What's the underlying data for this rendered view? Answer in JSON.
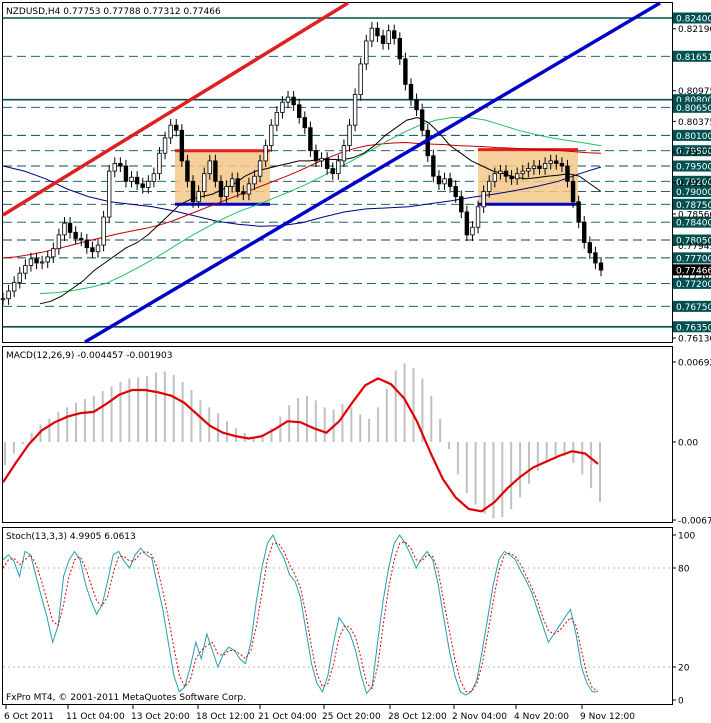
{
  "chart_data": [
    {
      "type": "candlestick",
      "title": "NZDUSD,H4  0.77753 0.77788 0.77312 0.77466",
      "ylim": [
        0.7613,
        0.824
      ],
      "current_price": "0.77466",
      "y_ticks": [
        "0.82190",
        "0.80975",
        "0.80375",
        "0.79775",
        "0.79175",
        "0.78560",
        "0.77945",
        "0.77365",
        "0.76130"
      ],
      "level_labels": [
        "0.82400",
        "0.81651",
        "0.80800",
        "0.80650",
        "0.80100",
        "0.79800",
        "0.79500",
        "0.79200",
        "0.79000",
        "0.78750",
        "0.78400",
        "0.78050",
        "0.77700",
        "0.77200",
        "0.76750",
        "0.76350"
      ],
      "levels": [
        0.824,
        0.8165,
        0.808,
        0.8065,
        0.801,
        0.798,
        0.795,
        0.792,
        0.79,
        0.7875,
        0.784,
        0.7805,
        0.777,
        0.772,
        0.7675,
        0.7635
      ],
      "levels_dark": [
        0.824,
        0.808,
        0.7635
      ],
      "close_path": [
        0.769,
        0.7705,
        0.7722,
        0.774,
        0.7755,
        0.7768,
        0.776,
        0.7762,
        0.7772,
        0.7788,
        0.7815,
        0.7838,
        0.782,
        0.7808,
        0.7805,
        0.779,
        0.7782,
        0.7795,
        0.785,
        0.794,
        0.7955,
        0.795,
        0.792,
        0.7928,
        0.7915,
        0.7908,
        0.792,
        0.7935,
        0.7975,
        0.8005,
        0.803,
        0.802,
        0.796,
        0.792,
        0.788,
        0.79,
        0.7935,
        0.796,
        0.792,
        0.789,
        0.791,
        0.7925,
        0.79,
        0.7895,
        0.7915,
        0.793,
        0.796,
        0.799,
        0.803,
        0.8055,
        0.8075,
        0.8085,
        0.807,
        0.8045,
        0.8025,
        0.798,
        0.796,
        0.7965,
        0.7945,
        0.7935,
        0.796,
        0.799,
        0.803,
        0.809,
        0.815,
        0.8195,
        0.822,
        0.8205,
        0.819,
        0.8215,
        0.82,
        0.816,
        0.811,
        0.808,
        0.806,
        0.802,
        0.797,
        0.793,
        0.7915,
        0.7925,
        0.791,
        0.789,
        0.786,
        0.7815,
        0.783,
        0.787,
        0.79,
        0.792,
        0.7935,
        0.794,
        0.793,
        0.7925,
        0.7935,
        0.794,
        0.7945,
        0.795,
        0.7945,
        0.7955,
        0.796,
        0.7955,
        0.795,
        0.792,
        0.788,
        0.784,
        0.78,
        0.778,
        0.776,
        0.7746
      ],
      "sma_black": [
        0.768,
        0.7685,
        0.7695,
        0.771,
        0.7725,
        0.7745,
        0.776,
        0.7775,
        0.779,
        0.78,
        0.7815,
        0.7835,
        0.7855,
        0.7875,
        0.7885,
        0.789,
        0.7895,
        0.7905,
        0.7915,
        0.793,
        0.794,
        0.7945,
        0.795,
        0.7955,
        0.796,
        0.796,
        0.7963,
        0.7963,
        0.7962,
        0.7966,
        0.7975,
        0.799,
        0.801,
        0.8025,
        0.804,
        0.8045,
        0.8035,
        0.8015,
        0.799,
        0.7975,
        0.796,
        0.795,
        0.794,
        0.7935,
        0.7928,
        0.7925,
        0.7927,
        0.793,
        0.7932,
        0.7935,
        0.793,
        0.7915,
        0.79
      ],
      "sma_green": [
        0.77,
        0.7702,
        0.7706,
        0.7712,
        0.772,
        0.7735,
        0.7752,
        0.777,
        0.779,
        0.781,
        0.7828,
        0.7845,
        0.786,
        0.7872,
        0.7885,
        0.7898,
        0.7912,
        0.7928,
        0.7945,
        0.7962,
        0.798,
        0.7998,
        0.8015,
        0.803,
        0.804,
        0.8045,
        0.8045,
        0.804,
        0.803,
        0.802,
        0.8012,
        0.8005,
        0.8,
        0.7995,
        0.799
      ],
      "sma_red": [
        0.777,
        0.7772,
        0.7776,
        0.7781,
        0.7787,
        0.7793,
        0.78,
        0.7806,
        0.7812,
        0.7818,
        0.7823,
        0.7828,
        0.7834,
        0.7842,
        0.7852,
        0.7862,
        0.7872,
        0.7882,
        0.7892,
        0.7902,
        0.7912,
        0.7922,
        0.7932,
        0.7943,
        0.7955,
        0.7966,
        0.7976,
        0.7984,
        0.799,
        0.7993,
        0.7995,
        0.7996,
        0.7994,
        0.7993,
        0.7992,
        0.799,
        0.7989,
        0.7988,
        0.7986,
        0.7985,
        0.7984,
        0.7983,
        0.7982,
        0.798,
        0.7978,
        0.7976,
        0.7975
      ],
      "sma_navy": [
        0.795,
        0.794,
        0.7925,
        0.7905,
        0.789,
        0.788,
        0.7875,
        0.787,
        0.7862,
        0.7852,
        0.7842,
        0.7836,
        0.7832,
        0.7833,
        0.7839,
        0.785,
        0.786,
        0.7866,
        0.7868,
        0.787,
        0.7876,
        0.7882,
        0.7889,
        0.7895,
        0.7902,
        0.791,
        0.792,
        0.7935,
        0.7948
      ]
    },
    {
      "type": "macd",
      "title": "MACD(12,26,9) -0.004457 -0.001903",
      "ylim": [
        -0.00675,
        0.00692
      ],
      "y_ticks": [
        "0.00692",
        "0.00",
        "-0.00675"
      ],
      "histogram": [
        -0.002,
        -0.001,
        -0.0002,
        0.0008,
        0.0015,
        0.002,
        0.0026,
        0.003,
        0.0034,
        0.0037,
        0.004,
        0.0044,
        0.0048,
        0.0052,
        0.0055,
        0.0056,
        0.0057,
        0.006,
        0.0061,
        0.0058,
        0.0052,
        0.0045,
        0.0036,
        0.003,
        0.0025,
        0.0018,
        0.0012,
        0.0008,
        0.0004,
        0.0006,
        0.0012,
        0.0022,
        0.0032,
        0.0038,
        0.004,
        0.0036,
        0.003,
        0.0028,
        0.0033,
        0.003,
        0.0024,
        0.002,
        0.003,
        0.0046,
        0.0062,
        0.0068,
        0.0064,
        0.0055,
        0.004,
        0.002,
        -0.0006,
        -0.0028,
        -0.0044,
        -0.0054,
        -0.0062,
        -0.0066,
        -0.0065,
        -0.0058,
        -0.0048,
        -0.0036,
        -0.0025,
        -0.0016,
        -0.0012,
        -0.0012,
        -0.0018,
        -0.0028,
        -0.004,
        -0.0052
      ],
      "signal": [
        -0.0035,
        -0.0018,
        -0.0002,
        0.001,
        0.0017,
        0.0022,
        0.0025,
        0.0026,
        0.0033,
        0.0041,
        0.0045,
        0.0045,
        0.0043,
        0.004,
        0.0034,
        0.0024,
        0.0014,
        0.0008,
        0.0005,
        0.0003,
        0.0005,
        0.0011,
        0.0018,
        0.0017,
        0.0012,
        0.0008,
        0.0018,
        0.0034,
        0.0049,
        0.0055,
        0.005,
        0.0038,
        0.0018,
        -0.0008,
        -0.0032,
        -0.0048,
        -0.0058,
        -0.006,
        -0.0052,
        -0.004,
        -0.003,
        -0.0022,
        -0.0017,
        -0.0012,
        -0.0008,
        -0.001,
        -0.0019
      ]
    },
    {
      "type": "stochastic",
      "title": "Stoch(13,3,3) 4.9905 6.0613",
      "ylim": [
        0,
        100
      ],
      "y_ticks": [
        "100",
        "80",
        "20",
        "0"
      ],
      "main": [
        85,
        88,
        84,
        75,
        90,
        88,
        75,
        62,
        50,
        35,
        45,
        75,
        85,
        90,
        85,
        70,
        60,
        52,
        58,
        72,
        88,
        90,
        84,
        80,
        88,
        92,
        88,
        86,
        70,
        55,
        35,
        15,
        5,
        8,
        20,
        35,
        25,
        40,
        30,
        20,
        28,
        32,
        30,
        25,
        22,
        35,
        60,
        80,
        95,
        100,
        92,
        86,
        76,
        72,
        62,
        42,
        22,
        10,
        5,
        15,
        35,
        50,
        45,
        40,
        30,
        15,
        4,
        8,
        35,
        60,
        80,
        95,
        100,
        95,
        88,
        80,
        86,
        90,
        85,
        70,
        50,
        30,
        15,
        5,
        3,
        5,
        12,
        30,
        50,
        70,
        85,
        90,
        88,
        85,
        78,
        72,
        65,
        55,
        45,
        35,
        40,
        45,
        50,
        55,
        40,
        20,
        10,
        5,
        5
      ],
      "signal": [
        80,
        85,
        86,
        82,
        85,
        88,
        82,
        72,
        60,
        48,
        45,
        58,
        75,
        85,
        87,
        80,
        70,
        60,
        57,
        63,
        77,
        87,
        87,
        84,
        85,
        89,
        90,
        88,
        80,
        66,
        50,
        32,
        15,
        8,
        12,
        25,
        30,
        33,
        35,
        28,
        27,
        30,
        30,
        28,
        25,
        30,
        45,
        65,
        85,
        95,
        95,
        90,
        82,
        76,
        68,
        52,
        32,
        16,
        8,
        10,
        22,
        38,
        45,
        44,
        38,
        25,
        10,
        7,
        20,
        45,
        68,
        85,
        95,
        96,
        92,
        85,
        84,
        88,
        87,
        78,
        60,
        42,
        25,
        12,
        5,
        5,
        10,
        22,
        40,
        60,
        78,
        88,
        89,
        87,
        82,
        75,
        68,
        60,
        50,
        42,
        40,
        42,
        46,
        50,
        45,
        30,
        15,
        7,
        6
      ]
    }
  ],
  "x_ticks": [
    "6 Oct 2011",
    "11 Oct 04:00",
    "13 Oct 20:00",
    "18 Oct 12:00",
    "21 Oct 04:00",
    "25 Oct 20:00",
    "28 Oct 12:00",
    "2 Nov 04:00",
    "4 Nov 20:00",
    "9 Nov 12:00"
  ],
  "copyright": "FxPro MT4, © 2001-2011 MetaQuotes Software Corp.",
  "colors": {
    "frame": "#000000",
    "level_dark": "#005050",
    "level_dashed": "#005050",
    "trend_red": "#e02020",
    "trend_blue": "#0000c8",
    "box_fill": "#f5c88a",
    "box_top": "#e02020",
    "box_bottom": "#0000c8",
    "candle": "#000000",
    "sma_black": "#000000",
    "sma_green": "#20c060",
    "sma_red": "#c00000",
    "sma_navy": "#000080",
    "macd_hist": "#c0c0c0",
    "macd_signal": "#e00000",
    "stoch_main": "#20a0b0",
    "stoch_signal": "#e00000",
    "current_price_bg": "#000000",
    "current_price_fg": "#ffffff",
    "label_bg": "#005050",
    "label_fg": "#ffffff"
  }
}
